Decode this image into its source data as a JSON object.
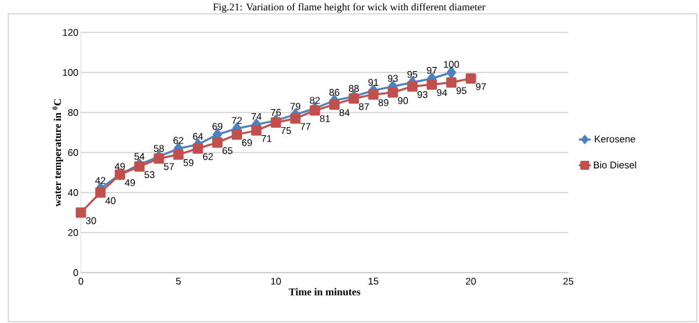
{
  "chart_data": {
    "type": "line",
    "title": "Fig.21: Variation of flame height for wick with different diameter",
    "xlabel": "Time in minutes",
    "ylabel": "water temperature  in $^{0}$C",
    "xlim": [
      0,
      25
    ],
    "xticks": [
      0,
      5,
      10,
      15,
      20,
      25
    ],
    "ylim": [
      0,
      120
    ],
    "yticks": [
      0,
      20,
      40,
      60,
      80,
      100,
      120
    ],
    "grid": "y",
    "legend": "right",
    "line_style": "solid",
    "series": [
      {
        "name": "Kerosene",
        "color": "#4f81bd",
        "marker": "diamond",
        "x": [
          1,
          2,
          3,
          4,
          5,
          6,
          7,
          8,
          9,
          10,
          11,
          12,
          13,
          14,
          15,
          16,
          17,
          18,
          19
        ],
        "values": [
          42,
          49,
          54,
          58,
          62,
          64,
          69,
          72,
          74,
          76,
          79,
          82,
          86,
          88,
          91,
          93,
          95,
          97,
          100
        ],
        "value_labels": [
          "42",
          "49",
          "54",
          "58",
          "62",
          "64",
          "69",
          "72",
          "74",
          "76",
          "79",
          "82",
          "86",
          "88",
          "91",
          "93",
          "95",
          "97",
          "100"
        ]
      },
      {
        "name": "Bio Diesel",
        "color": "#c0504d",
        "marker": "square",
        "x": [
          0,
          1,
          2,
          3,
          4,
          5,
          6,
          7,
          8,
          9,
          10,
          11,
          12,
          13,
          14,
          15,
          16,
          17,
          18,
          19,
          20
        ],
        "values": [
          30,
          40,
          49,
          53,
          57,
          59,
          62,
          65,
          69,
          71,
          75,
          77,
          81,
          84,
          87,
          89,
          90,
          93,
          94,
          95,
          97
        ],
        "value_labels": [
          "30",
          "40",
          "49",
          "53",
          "57",
          "59",
          "62",
          "65",
          "69",
          "71",
          "75",
          "77",
          "81",
          "84",
          "87",
          "89",
          "90",
          "93",
          "94",
          "95",
          "97"
        ]
      }
    ]
  }
}
